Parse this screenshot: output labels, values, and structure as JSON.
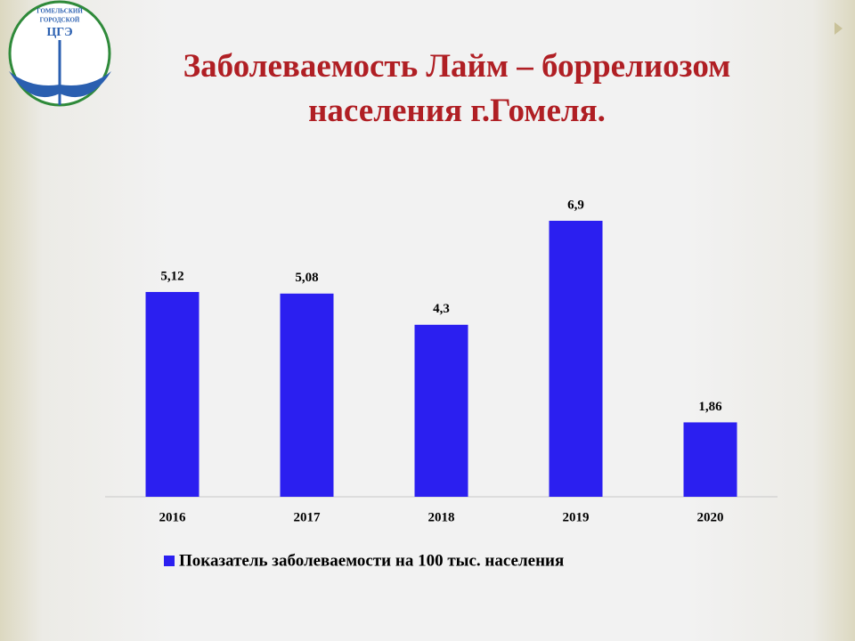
{
  "logo": {
    "lines": [
      "ГОМЕЛЬСКИЙ",
      "ГОРОДСКОЙ",
      "ЦГЭ"
    ]
  },
  "chart_data": {
    "type": "bar",
    "title": "Заболеваемость Лайм – боррелиозом населения г.Гомеля.",
    "categories": [
      "2016",
      "2017",
      "2018",
      "2019",
      "2020"
    ],
    "series": [
      {
        "name": "Показатель заболеваемости на 100 тыс. населения",
        "color": "#2b1ff0",
        "values": [
          5.12,
          5.08,
          4.3,
          6.9,
          1.86
        ],
        "value_labels": [
          "5,12",
          "5,08",
          "4,3",
          "6,9",
          "1,86"
        ]
      }
    ]
  }
}
